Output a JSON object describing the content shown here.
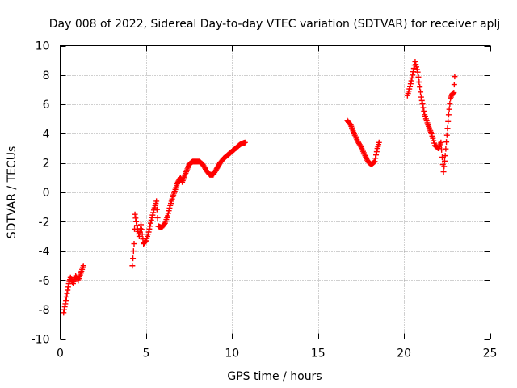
{
  "chart_data": {
    "type": "scatter",
    "title": "Day 008 of 2022, Sidereal Day-to-day VTEC variation (SDTVAR) for receiver aplj",
    "xlabel": "GPS time / hours",
    "ylabel": "SDTVAR / TECUs",
    "xlim": [
      0,
      25
    ],
    "ylim": [
      -10,
      10
    ],
    "xticks": [
      "0",
      "5",
      "10",
      "15",
      "20",
      "25"
    ],
    "yticks": [
      "-10",
      "-8",
      "-6",
      "-4",
      "-2",
      "0",
      "2",
      "4",
      "6",
      "8",
      "10"
    ],
    "grid": true,
    "marker": "plus",
    "color": "#ff0000",
    "segments": [
      [
        [
          0.2,
          -8.2
        ],
        [
          0.3,
          -7.6
        ],
        [
          0.4,
          -6.9
        ],
        [
          0.5,
          -6.2
        ],
        [
          0.6,
          -5.8
        ],
        [
          0.75,
          -6.2
        ],
        [
          0.9,
          -5.7
        ],
        [
          1.05,
          -6.0
        ],
        [
          1.2,
          -5.5
        ],
        [
          1.35,
          -5.0
        ]
      ],
      [
        [
          4.2,
          -5.0
        ],
        [
          4.3,
          -3.5
        ],
        [
          4.35,
          -1.5
        ],
        [
          4.5,
          -2.5
        ],
        [
          4.6,
          -3.0
        ],
        [
          4.7,
          -2.2
        ],
        [
          4.85,
          -3.5
        ],
        [
          5.0,
          -3.3
        ],
        [
          5.15,
          -2.7
        ],
        [
          5.3,
          -1.9
        ],
        [
          5.45,
          -1.2
        ],
        [
          5.6,
          -0.6
        ],
        [
          5.7,
          -2.3
        ],
        [
          5.9,
          -2.4
        ],
        [
          6.1,
          -2.1
        ],
        [
          6.25,
          -1.6
        ],
        [
          6.4,
          -0.9
        ],
        [
          6.55,
          -0.3
        ],
        [
          6.7,
          0.2
        ],
        [
          6.85,
          0.7
        ],
        [
          7.0,
          1.0
        ],
        [
          7.1,
          0.7
        ],
        [
          7.3,
          1.3
        ],
        [
          7.5,
          1.9
        ],
        [
          7.7,
          2.1
        ],
        [
          7.9,
          2.1
        ],
        [
          8.1,
          2.1
        ],
        [
          8.3,
          1.9
        ],
        [
          8.5,
          1.5
        ],
        [
          8.7,
          1.2
        ],
        [
          8.9,
          1.2
        ],
        [
          9.1,
          1.6
        ],
        [
          9.3,
          2.0
        ],
        [
          9.5,
          2.3
        ],
        [
          9.7,
          2.5
        ],
        [
          9.9,
          2.7
        ],
        [
          10.1,
          2.9
        ],
        [
          10.3,
          3.1
        ],
        [
          10.5,
          3.3
        ],
        [
          10.75,
          3.4
        ]
      ],
      [
        [
          16.7,
          4.9
        ],
        [
          16.9,
          4.6
        ],
        [
          17.1,
          4.0
        ],
        [
          17.3,
          3.5
        ],
        [
          17.5,
          3.1
        ],
        [
          17.7,
          2.6
        ],
        [
          17.9,
          2.1
        ],
        [
          18.1,
          1.9
        ],
        [
          18.3,
          2.1
        ],
        [
          18.45,
          3.0
        ],
        [
          18.55,
          3.4
        ]
      ],
      [
        [
          20.2,
          6.6
        ],
        [
          20.35,
          7.2
        ],
        [
          20.5,
          8.0
        ],
        [
          20.65,
          8.9
        ],
        [
          20.8,
          8.2
        ],
        [
          21.0,
          6.5
        ],
        [
          21.2,
          5.3
        ],
        [
          21.4,
          4.6
        ],
        [
          21.6,
          4.0
        ],
        [
          21.8,
          3.2
        ],
        [
          22.0,
          3.0
        ],
        [
          22.15,
          3.4
        ],
        [
          22.3,
          1.4
        ],
        [
          22.4,
          2.5
        ],
        [
          22.5,
          3.9
        ],
        [
          22.6,
          5.3
        ],
        [
          22.7,
          6.4
        ],
        [
          22.8,
          6.7
        ],
        [
          22.9,
          6.8
        ],
        [
          22.95,
          7.9
        ]
      ]
    ]
  }
}
